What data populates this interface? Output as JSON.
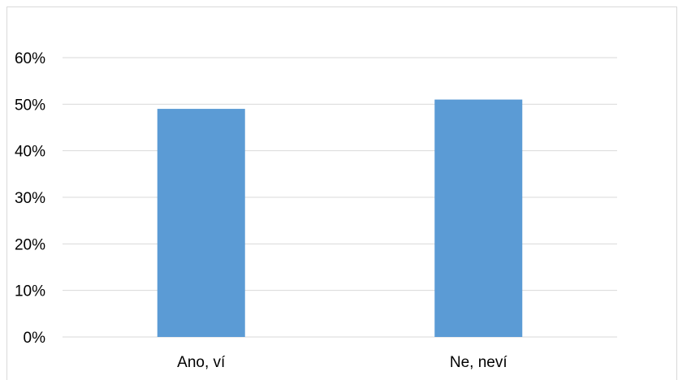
{
  "chart_data": {
    "type": "bar",
    "categories": [
      "Ano, ví",
      "Ne, neví"
    ],
    "values": [
      0.49,
      0.51
    ],
    "title": "",
    "xlabel": "",
    "ylabel": "",
    "ylim": [
      0,
      0.6
    ],
    "yticks": [
      "0%",
      "10%",
      "20%",
      "30%",
      "40%",
      "50%",
      "60%"
    ],
    "grid": true,
    "legend": "none",
    "bar_color": "#5b9bd5",
    "grid_color": "#d9d9d9"
  }
}
